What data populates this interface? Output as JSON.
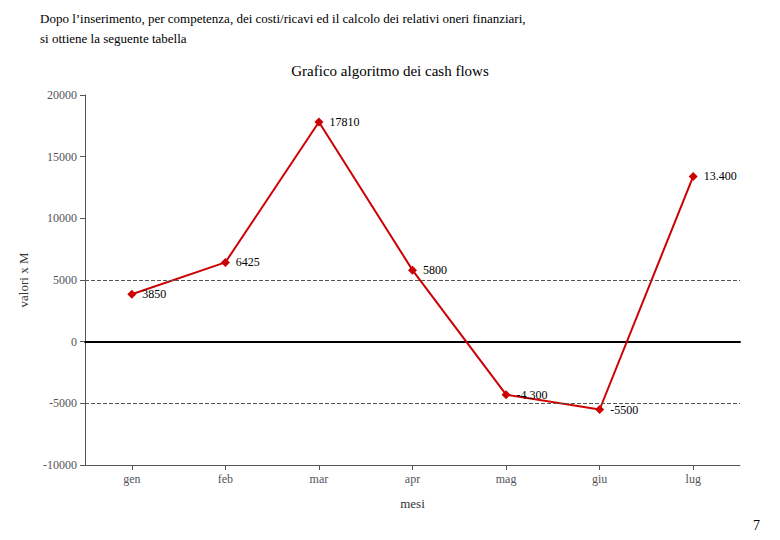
{
  "chart_data": {
    "type": "line",
    "title": "Grafico algoritmo dei cash flows",
    "xlabel": "mesi",
    "ylabel": "valori x M",
    "annotations": [
      "Dopo l’inserimento, per competenza, dei costi/ricavi ed il calcolo dei relativi oneri finanziari,",
      "si ottiene la seguente tabella",
      "7"
    ],
    "categories": [
      "gen",
      "feb",
      "mar",
      "apr",
      "mag",
      "giu",
      "lug"
    ],
    "values": [
      3850,
      6425,
      17810,
      5800,
      -4300,
      -5500,
      13400
    ],
    "value_labels": [
      "3850",
      "6425",
      "17810",
      "5800",
      "-4.300",
      "-5500",
      "13.400"
    ],
    "data_labels": true,
    "color": "#cc0000",
    "marker": "diamond",
    "reference_lines": [
      5000,
      -5000
    ],
    "ylim": [
      -10000,
      20000
    ],
    "yticks": [
      -10000,
      -5000,
      0,
      5000,
      10000,
      15000,
      20000
    ],
    "grid": false
  }
}
